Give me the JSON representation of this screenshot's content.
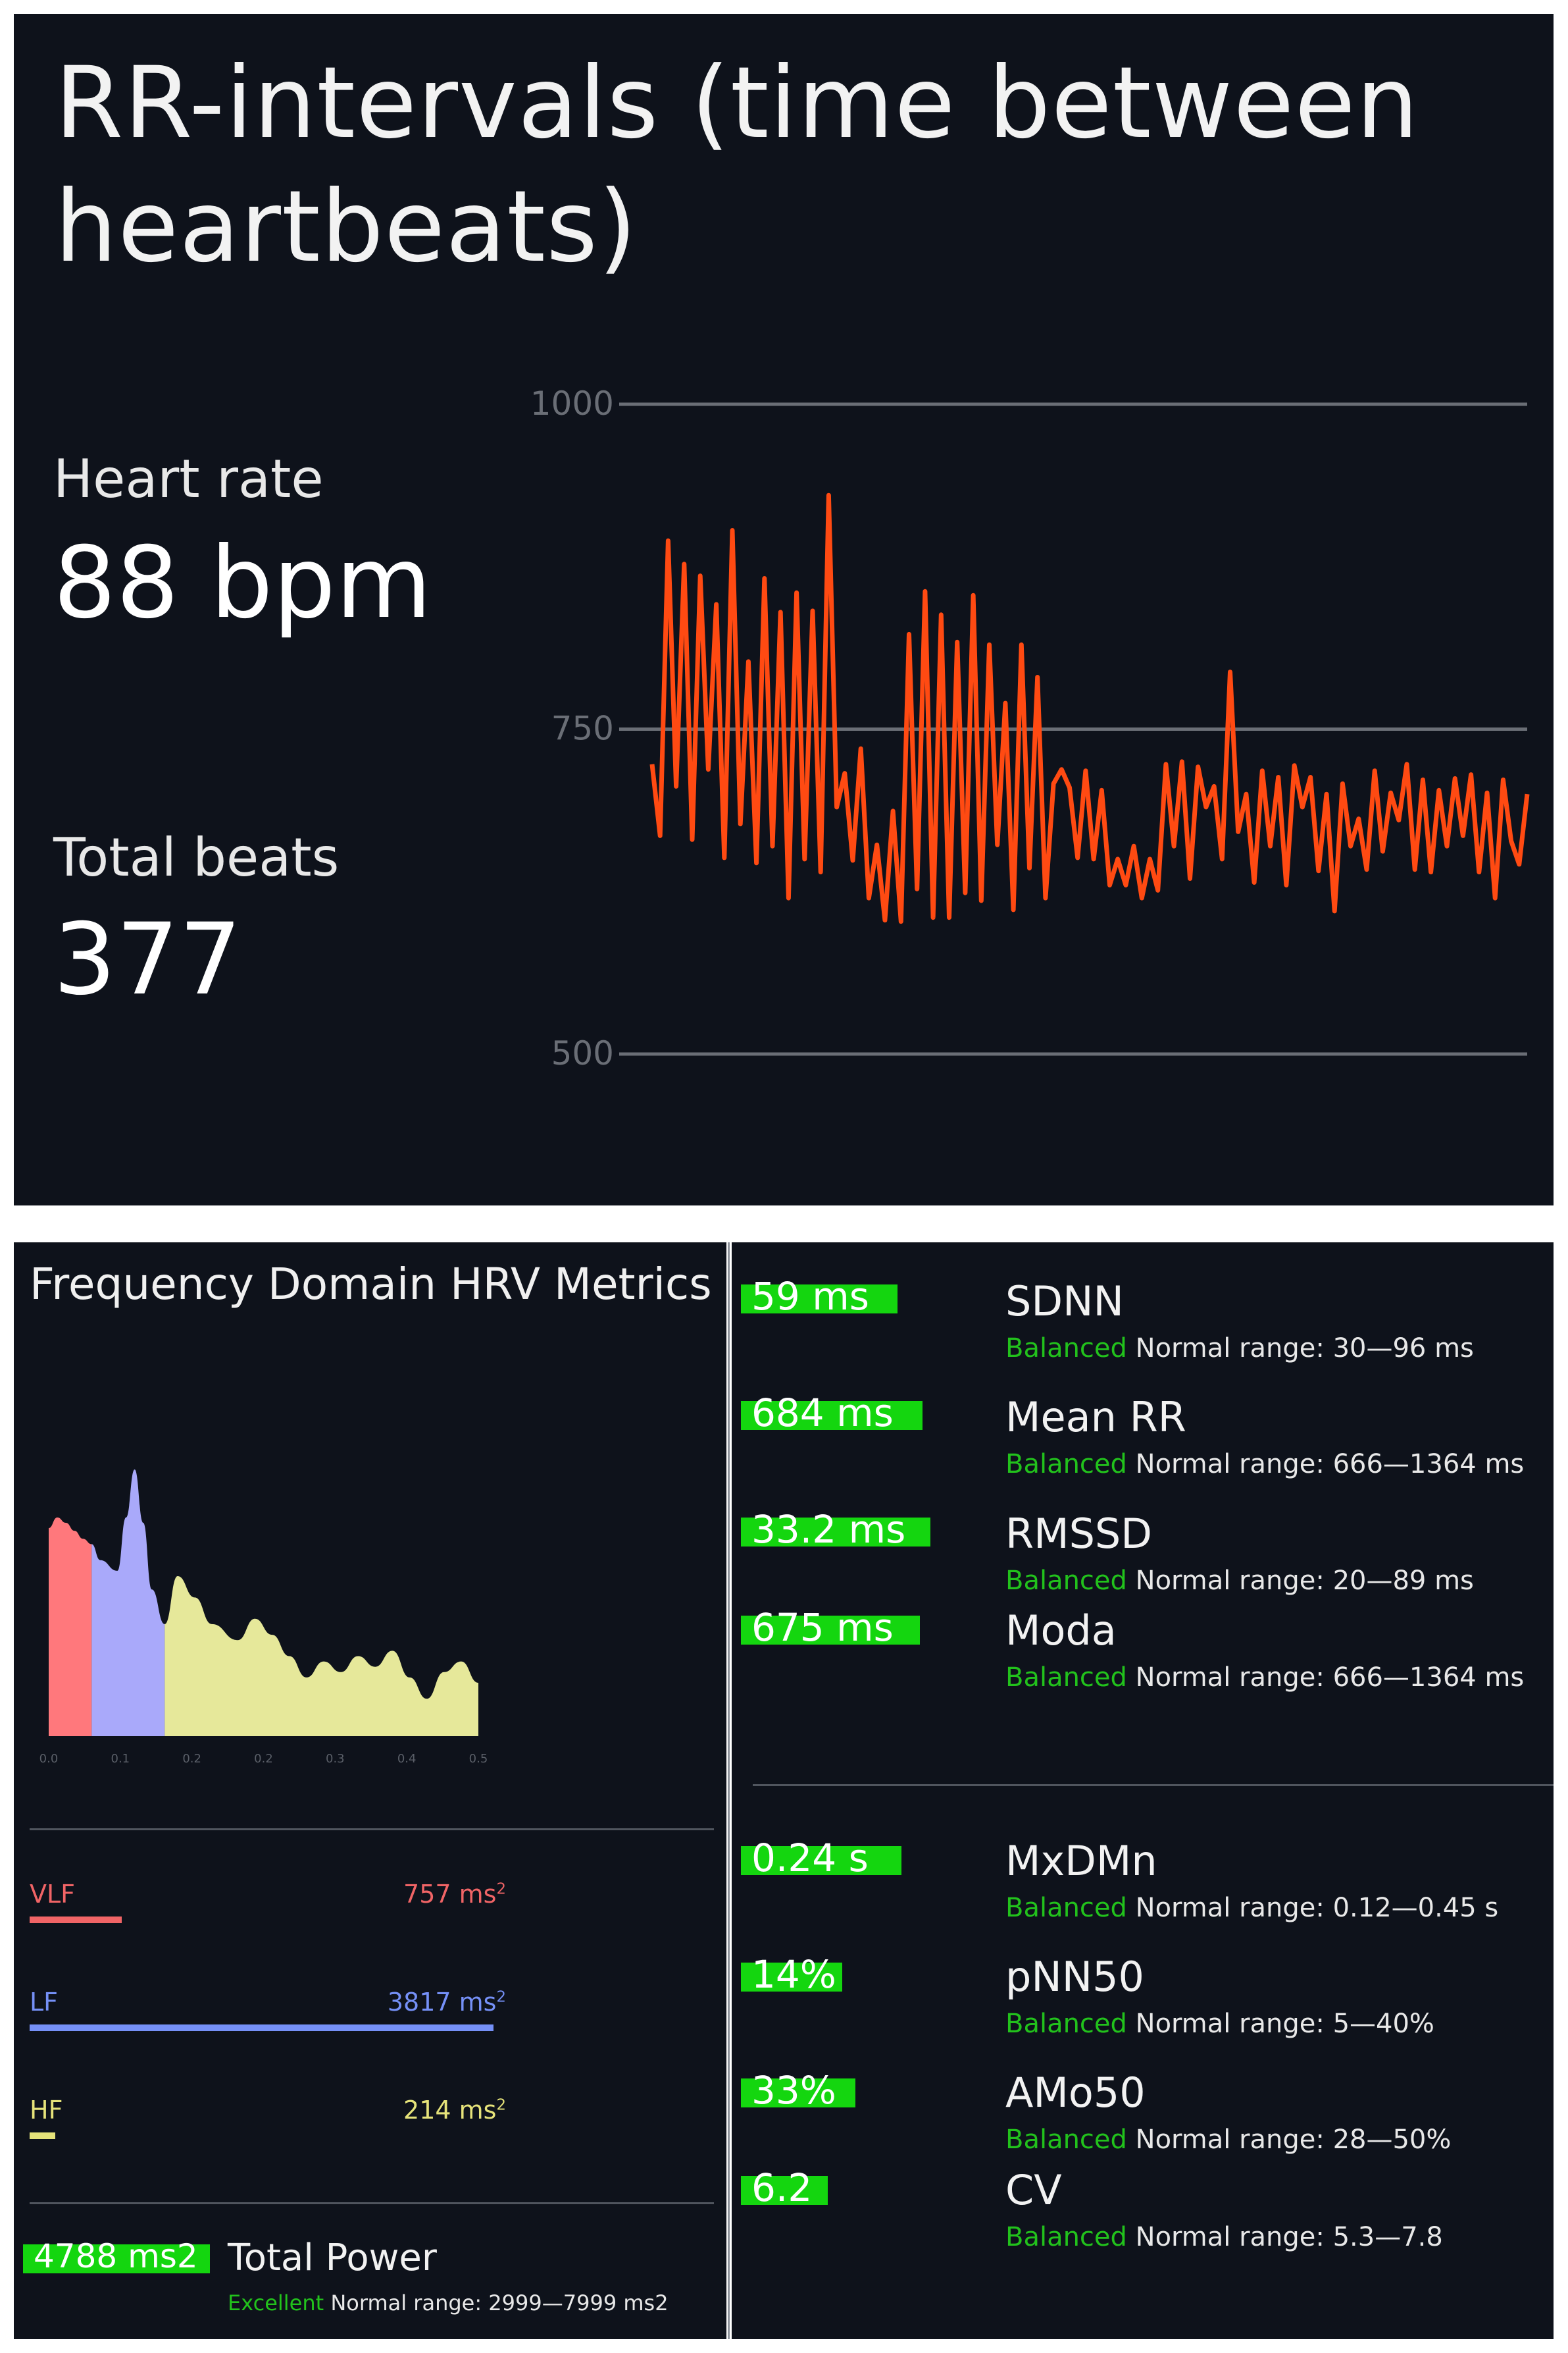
{
  "rr_panel": {
    "title": "RR-intervals (time between heartbeats)",
    "heart_rate_label": "Heart rate",
    "heart_rate_value": "88 bpm",
    "total_beats_label": "Total beats",
    "total_beats_value": "377"
  },
  "chart_data": [
    {
      "type": "line",
      "title": "",
      "xlabel": "",
      "ylabel": "",
      "ylim": [
        500,
        1000
      ],
      "yticks": [
        "1000",
        "750",
        "500"
      ],
      "grid": true,
      "color": "#ff4a12",
      "values": [
        723,
        668,
        895,
        706,
        877,
        665,
        868,
        719,
        846,
        651,
        903,
        677,
        802,
        647,
        866,
        660,
        840,
        620,
        855,
        650,
        841,
        640,
        930,
        690,
        716,
        649,
        735,
        620,
        661,
        603,
        687,
        602,
        823,
        627,
        856,
        605,
        838,
        605,
        817,
        624,
        853,
        618,
        815,
        661,
        770,
        611,
        815,
        643,
        790,
        620,
        708,
        719,
        705,
        651,
        718,
        650,
        703,
        630,
        650,
        630,
        660,
        620,
        650,
        626,
        723,
        660,
        725,
        635,
        721,
        690,
        706,
        650,
        794,
        671,
        700,
        632,
        718,
        660,
        713,
        630,
        722,
        690,
        713,
        641,
        700,
        610,
        708,
        660,
        681,
        642,
        718,
        656,
        701,
        680,
        723,
        642,
        711,
        640,
        703,
        660,
        712,
        668,
        715,
        640,
        701,
        620,
        711,
        664,
        646,
        700
      ]
    },
    {
      "type": "area",
      "title": "",
      "xlabel": "",
      "ylabel": "",
      "xlim": [
        0,
        0.5
      ],
      "xticks": [
        "0.0",
        "0.1",
        "0.2",
        "0.2",
        "0.3",
        "0.4",
        "0.5"
      ],
      "series": [
        {
          "name": "VLF",
          "color": "#ff787c",
          "x": [
            0.0,
            0.01,
            0.02,
            0.03,
            0.04,
            0.05
          ],
          "y": [
            0.78,
            0.82,
            0.8,
            0.77,
            0.74,
            0.72
          ]
        },
        {
          "name": "LF",
          "color": "#a9a9fa",
          "x": [
            0.05,
            0.06,
            0.08,
            0.09,
            0.1,
            0.11,
            0.12,
            0.135
          ],
          "y": [
            0.72,
            0.66,
            0.62,
            0.82,
            1.0,
            0.8,
            0.55,
            0.42
          ]
        },
        {
          "name": "HF",
          "color": "#e6e89a",
          "x": [
            0.135,
            0.15,
            0.17,
            0.19,
            0.22,
            0.24,
            0.26,
            0.28,
            0.3,
            0.32,
            0.34,
            0.36,
            0.38,
            0.4,
            0.42,
            0.44,
            0.46,
            0.48,
            0.5
          ],
          "y": [
            0.42,
            0.6,
            0.52,
            0.42,
            0.36,
            0.44,
            0.38,
            0.3,
            0.22,
            0.28,
            0.24,
            0.3,
            0.26,
            0.32,
            0.22,
            0.14,
            0.24,
            0.28,
            0.2
          ]
        }
      ]
    }
  ],
  "freq_panel": {
    "title": "Frequency Domain HRV Metrics",
    "bands": [
      {
        "name": "VLF",
        "value": "757",
        "unit": "ms",
        "exp": "2",
        "color": "#f06466",
        "fraction": 0.198
      },
      {
        "name": "LF",
        "value": "3817",
        "unit": "ms",
        "exp": "2",
        "color": "#7590f7",
        "fraction": 1.0
      },
      {
        "name": "HF",
        "value": "214",
        "unit": "ms",
        "exp": "2",
        "color": "#e6e37a",
        "fraction": 0.056
      }
    ],
    "total_power": {
      "value": "4788 ms2",
      "name": "Total Power",
      "status": "Excellent",
      "range": "Normal range: 2999—7999 ms2"
    }
  },
  "metrics": [
    {
      "value": "59 ms",
      "name": "SDNN",
      "status": "Balanced",
      "range": "Normal range: 30—96 ms"
    },
    {
      "value": "684 ms",
      "name": "Mean RR",
      "status": "Balanced",
      "range": "Normal range: 666—1364 ms"
    },
    {
      "value": "33.2 ms",
      "name": "RMSSD",
      "status": "Balanced",
      "range": "Normal range: 20—89 ms"
    },
    {
      "value": "675 ms",
      "name": "Moda",
      "status": "Balanced",
      "range": "Normal range: 666—1364 ms"
    },
    {
      "value": "0.24 s",
      "name": "MxDMn",
      "status": "Balanced",
      "range": "Normal range: 0.12—0.45 s"
    },
    {
      "value": "14%",
      "name": "pNN50",
      "status": "Balanced",
      "range": "Normal range: 5—40%"
    },
    {
      "value": "33%",
      "name": "AMo50",
      "status": "Balanced",
      "range": "Normal range: 28—50%"
    },
    {
      "value": "6.2",
      "name": "CV",
      "status": "Balanced",
      "range": "Normal range: 5.3—7.8"
    }
  ],
  "colors": {
    "panel_bg": "#0e121b",
    "highlight": "#14d60f",
    "status_green": "#22c21c",
    "rr_line": "#ff4a12"
  }
}
